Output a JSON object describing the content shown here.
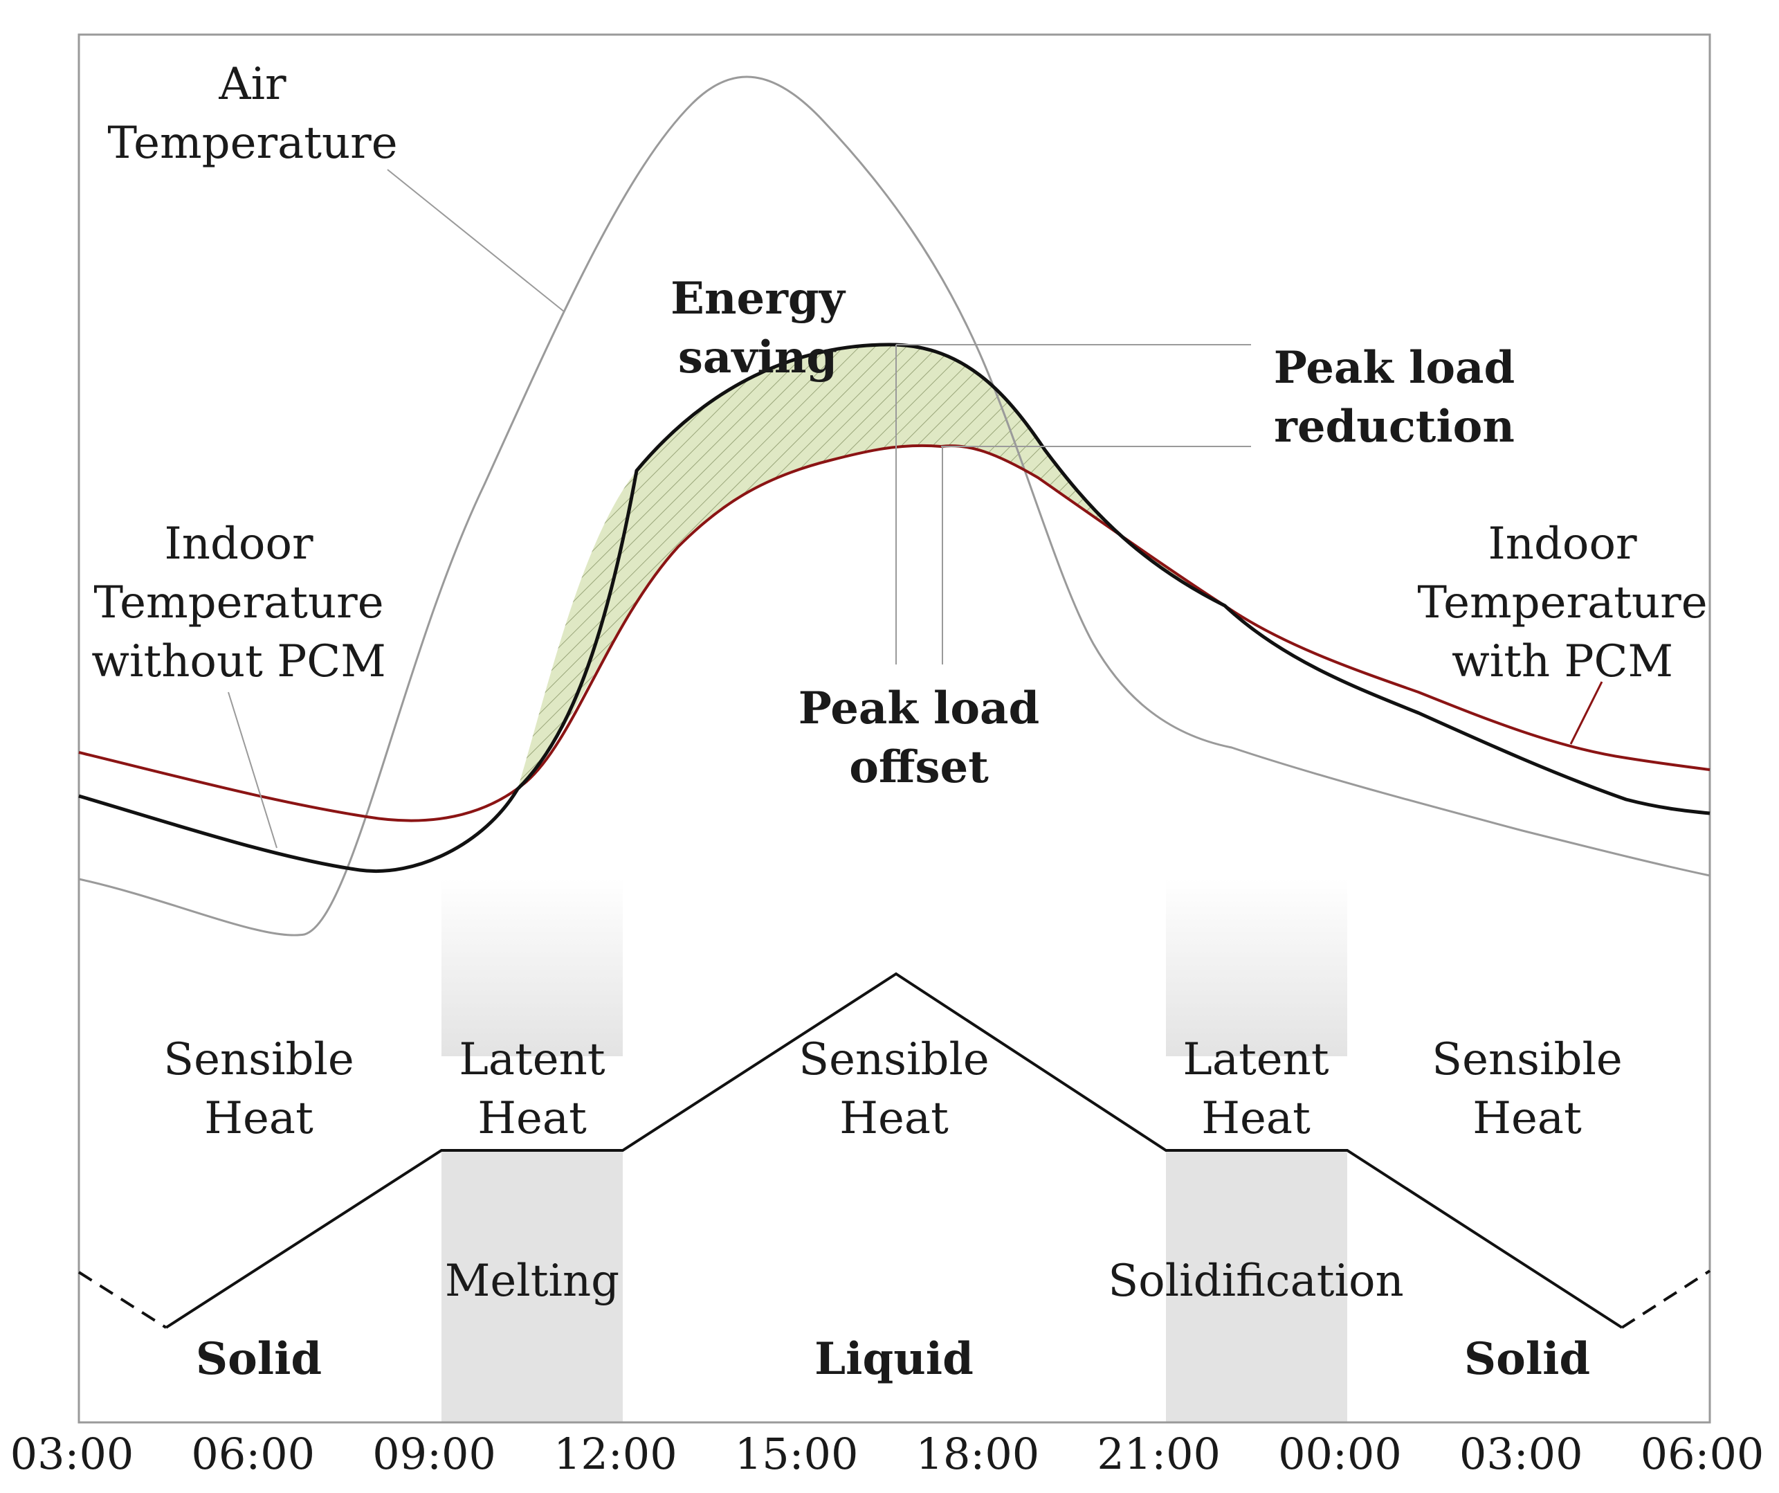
{
  "x_axis": {
    "ticks": [
      "03:00",
      "06:00",
      "09:00",
      "12:00",
      "15:00",
      "18:00",
      "21:00",
      "00:00",
      "03:00",
      "06:00"
    ]
  },
  "curves": {
    "air_temperature": {
      "label_line1": "Air",
      "label_line2": "Temperature",
      "color": "#9a9a9a"
    },
    "indoor_without_pcm": {
      "label_line1": "Indoor",
      "label_line2": "Temperature",
      "label_line3": "without PCM",
      "color": "#111111"
    },
    "indoor_with_pcm": {
      "label_line1": "Indoor",
      "label_line2": "Temperature",
      "label_line3": "with PCM",
      "color": "#8b1414"
    }
  },
  "annotations": {
    "energy_saving": {
      "line1": "Energy",
      "line2": "saving",
      "fill_color": "#dfe8c4"
    },
    "peak_load_reduction": {
      "line1": "Peak load",
      "line2": "reduction"
    },
    "peak_load_offset": {
      "line1": "Peak load",
      "line2": "offset"
    }
  },
  "phase_labels": {
    "sensible_1": {
      "line1": "Sensible",
      "line2": "Heat"
    },
    "latent_1": {
      "line1": "Latent",
      "line2": "Heat"
    },
    "sensible_2": {
      "line1": "Sensible",
      "line2": "Heat"
    },
    "latent_2": {
      "line1": "Latent",
      "line2": "Heat"
    },
    "sensible_3": {
      "line1": "Sensible",
      "line2": "Heat"
    }
  },
  "process_labels": {
    "melting": "Melting",
    "solidification": "Solidification"
  },
  "state_labels": {
    "solid_1": "Solid",
    "liquid": "Liquid",
    "solid_2": "Solid"
  },
  "colors": {
    "latent_band": "#e3e3e3",
    "frame": "#9a9a9a"
  }
}
